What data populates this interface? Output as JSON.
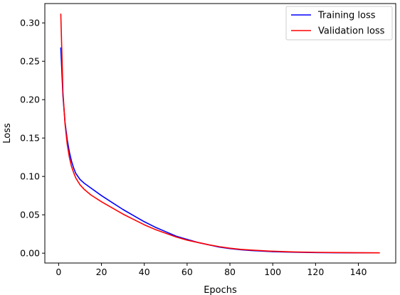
{
  "chart_data": {
    "type": "line",
    "title": "",
    "xlabel": "Epochs",
    "ylabel": "Loss",
    "xlim": [
      -6.45,
      157.45
    ],
    "ylim": [
      -0.0128,
      0.3252
    ],
    "xticks": [
      0,
      20,
      40,
      60,
      80,
      100,
      120,
      140
    ],
    "yticks": [
      0.0,
      0.05,
      0.1,
      0.15,
      0.2,
      0.25,
      0.3
    ],
    "ytick_labels": [
      "0.00",
      "0.05",
      "0.10",
      "0.15",
      "0.20",
      "0.25",
      "0.30"
    ],
    "grid": false,
    "legend": {
      "position": "top-right"
    },
    "series": [
      {
        "name": "Training loss",
        "color": "#0000ff",
        "points": [
          [
            1,
            0.268
          ],
          [
            2,
            0.205
          ],
          [
            3,
            0.17
          ],
          [
            4,
            0.148
          ],
          [
            5,
            0.132
          ],
          [
            6,
            0.12
          ],
          [
            7,
            0.111
          ],
          [
            8,
            0.104
          ],
          [
            10,
            0.096
          ],
          [
            12,
            0.091
          ],
          [
            15,
            0.085
          ],
          [
            20,
            0.075
          ],
          [
            25,
            0.066
          ],
          [
            30,
            0.057
          ],
          [
            35,
            0.049
          ],
          [
            40,
            0.041
          ],
          [
            45,
            0.034
          ],
          [
            50,
            0.028
          ],
          [
            55,
            0.022
          ],
          [
            60,
            0.018
          ],
          [
            65,
            0.014
          ],
          [
            70,
            0.011
          ],
          [
            75,
            0.008
          ],
          [
            80,
            0.006
          ],
          [
            85,
            0.0045
          ],
          [
            90,
            0.0035
          ],
          [
            100,
            0.002
          ],
          [
            110,
            0.0012
          ],
          [
            120,
            0.0008
          ],
          [
            130,
            0.0006
          ],
          [
            140,
            0.0005
          ],
          [
            150,
            0.0004
          ]
        ]
      },
      {
        "name": "Validation loss",
        "color": "#ff0000",
        "points": [
          [
            1,
            0.312
          ],
          [
            2,
            0.21
          ],
          [
            3,
            0.168
          ],
          [
            4,
            0.142
          ],
          [
            5,
            0.125
          ],
          [
            6,
            0.113
          ],
          [
            7,
            0.105
          ],
          [
            8,
            0.098
          ],
          [
            10,
            0.089
          ],
          [
            12,
            0.083
          ],
          [
            15,
            0.076
          ],
          [
            20,
            0.067
          ],
          [
            25,
            0.059
          ],
          [
            30,
            0.051
          ],
          [
            35,
            0.044
          ],
          [
            40,
            0.037
          ],
          [
            45,
            0.031
          ],
          [
            50,
            0.026
          ],
          [
            55,
            0.021
          ],
          [
            60,
            0.017
          ],
          [
            65,
            0.014
          ],
          [
            70,
            0.011
          ],
          [
            75,
            0.0085
          ],
          [
            80,
            0.0065
          ],
          [
            85,
            0.005
          ],
          [
            90,
            0.004
          ],
          [
            100,
            0.0025
          ],
          [
            110,
            0.0016
          ],
          [
            120,
            0.0011
          ],
          [
            130,
            0.0008
          ],
          [
            140,
            0.0006
          ],
          [
            150,
            0.0005
          ]
        ]
      }
    ]
  }
}
